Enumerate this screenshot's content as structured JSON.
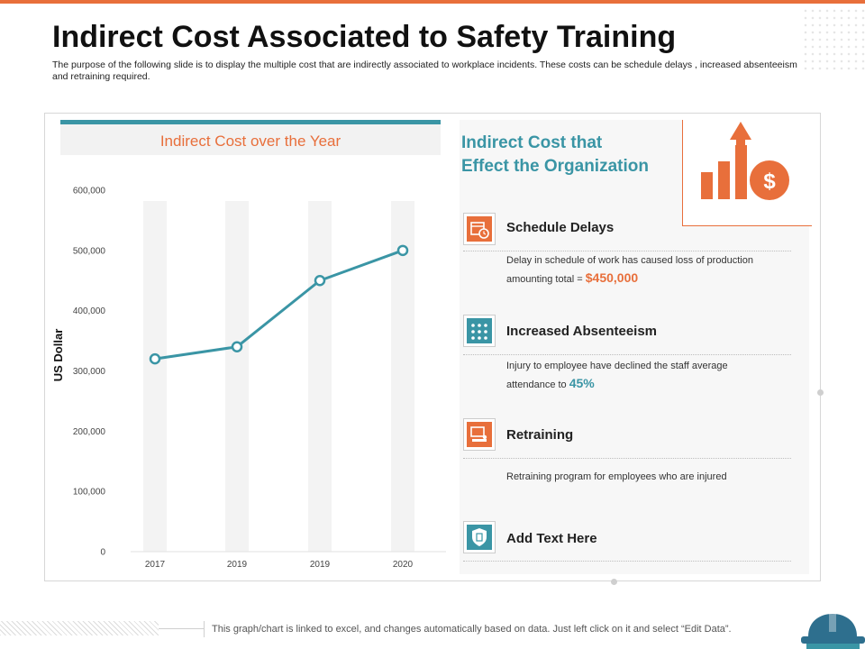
{
  "slide": {
    "title": "Indirect Cost Associated to Safety Training",
    "subtitle": "The purpose of the following slide is to display the multiple cost that are indirectly associated to workplace incidents. These costs can be schedule delays , increased absenteeism and retraining required."
  },
  "chart_data": {
    "type": "line",
    "title": "Indirect Cost over the Year",
    "ylabel": "US Dollar",
    "xlabel": "",
    "categories": [
      "2017",
      "2019",
      "2019",
      "2020"
    ],
    "values": [
      320000,
      340000,
      450000,
      500000
    ],
    "ylim": [
      0,
      600000
    ],
    "yticks": [
      0,
      100000,
      200000,
      300000,
      400000,
      500000,
      600000
    ],
    "ytick_labels": [
      "0",
      "100,000",
      "200,000",
      "300,000",
      "400,000",
      "500,000",
      "600,000"
    ],
    "grid": false,
    "colors": {
      "line": "#3a95a5",
      "column": "#f3f3f3"
    }
  },
  "panel": {
    "title_line1": "Indirect Cost that",
    "title_line2": "Effect the Organization",
    "items": [
      {
        "icon": "calendar-clock-icon",
        "title": "Schedule Delays",
        "desc_prefix": "Delay in schedule of work has caused loss of production amounting total = ",
        "highlight": "$450,000"
      },
      {
        "icon": "people-grid-icon",
        "title": "Increased Absenteeism",
        "desc_prefix": "Injury to employee have declined the staff average attendance to ",
        "highlight": "45%"
      },
      {
        "icon": "presentation-training-icon",
        "title": "Retraining",
        "desc_prefix": "Retraining program for employees who are injured",
        "highlight": ""
      },
      {
        "icon": "shield-document-icon",
        "title": "Add Text Here",
        "desc_prefix": "",
        "highlight": ""
      }
    ]
  },
  "footer": {
    "note": "This graph/chart is linked to excel, and changes automatically based on data. Just left click on it and select “Edit Data”."
  },
  "colors": {
    "accent": "#e86f3b",
    "teal": "#3a95a5",
    "dark_teal": "#2e6f8e"
  }
}
